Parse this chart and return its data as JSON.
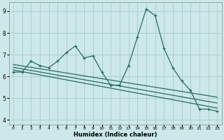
{
  "xlabel": "Humidex (Indice chaleur)",
  "ylabel": "",
  "bg_color": "#cce8e8",
  "grid_color": "#aacccc",
  "line_color": "#2a6b60",
  "xlim": [
    -0.5,
    23.5
  ],
  "ylim": [
    3.8,
    9.4
  ],
  "xticks": [
    0,
    1,
    2,
    3,
    4,
    5,
    6,
    7,
    8,
    9,
    10,
    11,
    12,
    13,
    14,
    15,
    16,
    17,
    18,
    19,
    20,
    21,
    22,
    23
  ],
  "yticks": [
    4,
    5,
    6,
    7,
    8,
    9
  ],
  "line1_x": [
    0,
    1,
    2,
    3,
    4,
    5,
    6,
    7,
    8,
    9,
    10,
    11,
    12,
    13,
    14,
    15,
    16,
    17,
    18,
    19,
    20,
    21,
    22,
    23
  ],
  "line1_y": [
    6.2,
    6.2,
    6.7,
    6.5,
    6.4,
    6.7,
    7.1,
    7.4,
    6.85,
    6.95,
    6.2,
    5.6,
    5.6,
    6.5,
    7.8,
    9.1,
    8.8,
    7.3,
    6.4,
    5.8,
    5.35,
    4.5,
    4.5,
    4.4
  ],
  "line2_x": [
    0,
    23
  ],
  "line2_y": [
    6.55,
    5.05
  ],
  "line3_x": [
    0,
    23
  ],
  "line3_y": [
    6.3,
    4.55
  ],
  "line4_x": [
    0,
    23
  ],
  "line4_y": [
    6.42,
    4.78
  ]
}
